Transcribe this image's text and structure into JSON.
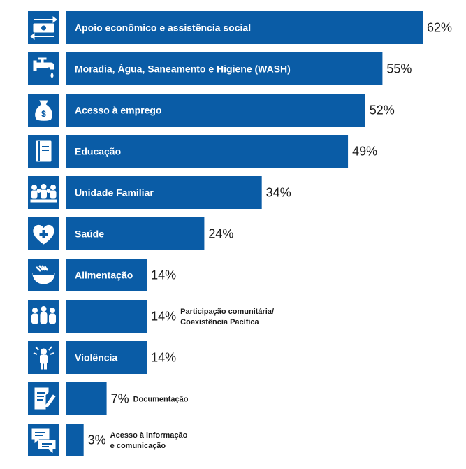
{
  "chart_data": {
    "type": "bar",
    "orientation": "horizontal",
    "unit": "%",
    "xlim": [
      0,
      62
    ],
    "colors": {
      "bar": "#0a5ca6",
      "icon_background": "#0a5ca6",
      "bar_text": "#ffffff",
      "value_text": "#1a1a1a"
    },
    "categories": [
      {
        "label": "Apoio econômico e assistência social",
        "value": 62,
        "value_label": "62%",
        "label_position": "inside",
        "icon": "money-transfer-icon"
      },
      {
        "label": "Moradia, Água, Saneamento e Higiene (WASH)",
        "value": 55,
        "value_label": "55%",
        "label_position": "inside",
        "icon": "water-tap-icon"
      },
      {
        "label": "Acesso à emprego",
        "value": 52,
        "value_label": "52%",
        "label_position": "inside",
        "icon": "money-bag-icon"
      },
      {
        "label": "Educação",
        "value": 49,
        "value_label": "49%",
        "label_position": "inside",
        "icon": "book-icon"
      },
      {
        "label": "Unidade Familiar",
        "value": 34,
        "value_label": "34%",
        "label_position": "inside",
        "icon": "family-icon"
      },
      {
        "label": "Saúde",
        "value": 24,
        "value_label": "24%",
        "label_position": "inside",
        "icon": "heart-plus-icon"
      },
      {
        "label": "Alimentação",
        "value": 14,
        "value_label": "14%",
        "label_position": "inside",
        "icon": "food-bowl-icon"
      },
      {
        "label": "Participação comunitária/\nCoexistência Pacífica",
        "value": 14,
        "value_label": "14%",
        "label_position": "outside",
        "icon": "community-icon"
      },
      {
        "label": "Violência",
        "value": 14,
        "value_label": "14%",
        "label_position": "inside",
        "icon": "violence-icon"
      },
      {
        "label": "Documentação",
        "value": 7,
        "value_label": "7%",
        "label_position": "outside",
        "icon": "document-icon"
      },
      {
        "label": "Acesso à informação\ne comunicação",
        "value": 3,
        "value_label": "3%",
        "label_position": "outside",
        "icon": "speech-bubble-icon"
      }
    ]
  }
}
